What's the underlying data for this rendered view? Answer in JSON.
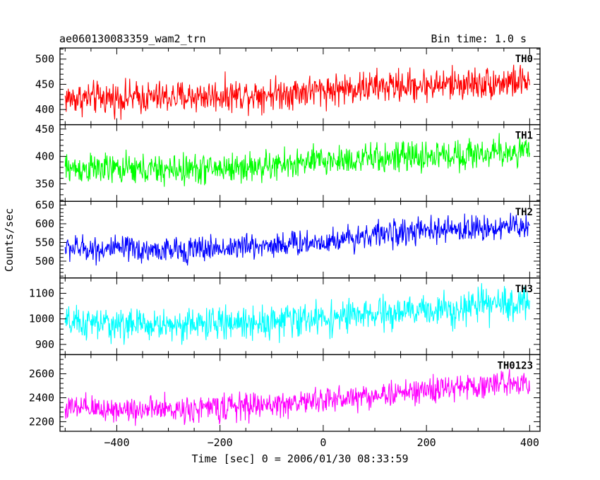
{
  "header": {
    "left_title": "ae060130083359_wam2_trn",
    "right_title": "Bin time: 1.0 s"
  },
  "chart_data": {
    "type": "line",
    "title": "ae060130083359_wam2_trn",
    "subtitle": "Bin time: 1.0 s",
    "xlabel": "Time [sec] 0 = 2006/01/30 08:33:59",
    "ylabel": "Counts/sec",
    "xlim": [
      -510,
      420
    ],
    "x_range_data": [
      -500,
      400
    ],
    "x_ticks": [
      -400,
      -200,
      0,
      200,
      400
    ],
    "x_tick_labels": [
      "−400",
      "−200",
      "0",
      "200",
      "400"
    ],
    "grid": false,
    "legend": "none",
    "panels": [
      {
        "name": "TH0",
        "color": "#ff0000",
        "ylim": [
          370,
          522
        ],
        "y_ticks": [
          400,
          450,
          500
        ],
        "y_tick_labels": [
          "400",
          "450",
          "500"
        ],
        "trend": [
          [
            -500,
            422
          ],
          [
            -300,
            424
          ],
          [
            -100,
            432
          ],
          [
            100,
            445
          ],
          [
            300,
            452
          ],
          [
            400,
            456
          ]
        ],
        "noise_amplitude": 28
      },
      {
        "name": "TH1",
        "color": "#00ff00",
        "ylim": [
          318,
          458
        ],
        "y_ticks": [
          350,
          400,
          450
        ],
        "y_tick_labels": [
          "350",
          "400",
          "450"
        ],
        "trend": [
          [
            -500,
            378
          ],
          [
            -300,
            375
          ],
          [
            -100,
            382
          ],
          [
            0,
            392
          ],
          [
            200,
            400
          ],
          [
            400,
            410
          ]
        ],
        "noise_amplitude": 24
      },
      {
        "name": "TH2",
        "color": "#0000ff",
        "ylim": [
          455,
          660
        ],
        "y_ticks": [
          500,
          550,
          600,
          650
        ],
        "y_tick_labels": [
          "500",
          "550",
          "600",
          "650"
        ],
        "trend": [
          [
            -500,
            535
          ],
          [
            -300,
            528
          ],
          [
            -200,
            535
          ],
          [
            0,
            552
          ],
          [
            100,
            572
          ],
          [
            300,
            588
          ],
          [
            400,
            595
          ]
        ],
        "noise_amplitude": 30
      },
      {
        "name": "TH3",
        "color": "#00ffff",
        "ylim": [
          860,
          1160
        ],
        "y_ticks": [
          900,
          1000,
          1100
        ],
        "y_tick_labels": [
          "900",
          "1000",
          "1100"
        ],
        "trend": [
          [
            -500,
            982
          ],
          [
            -300,
            975
          ],
          [
            -100,
            990
          ],
          [
            100,
            1015
          ],
          [
            300,
            1050
          ],
          [
            400,
            1065
          ]
        ],
        "noise_amplitude": 55
      },
      {
        "name": "TH0123",
        "color": "#ff00ff",
        "ylim": [
          2120,
          2760
        ],
        "y_ticks": [
          2200,
          2400,
          2600
        ],
        "y_tick_labels": [
          "2200",
          "2400",
          "2600"
        ],
        "trend": [
          [
            -500,
            2310
          ],
          [
            -300,
            2300
          ],
          [
            -100,
            2340
          ],
          [
            100,
            2420
          ],
          [
            300,
            2500
          ],
          [
            400,
            2540
          ]
        ],
        "noise_amplitude": 95
      }
    ]
  }
}
